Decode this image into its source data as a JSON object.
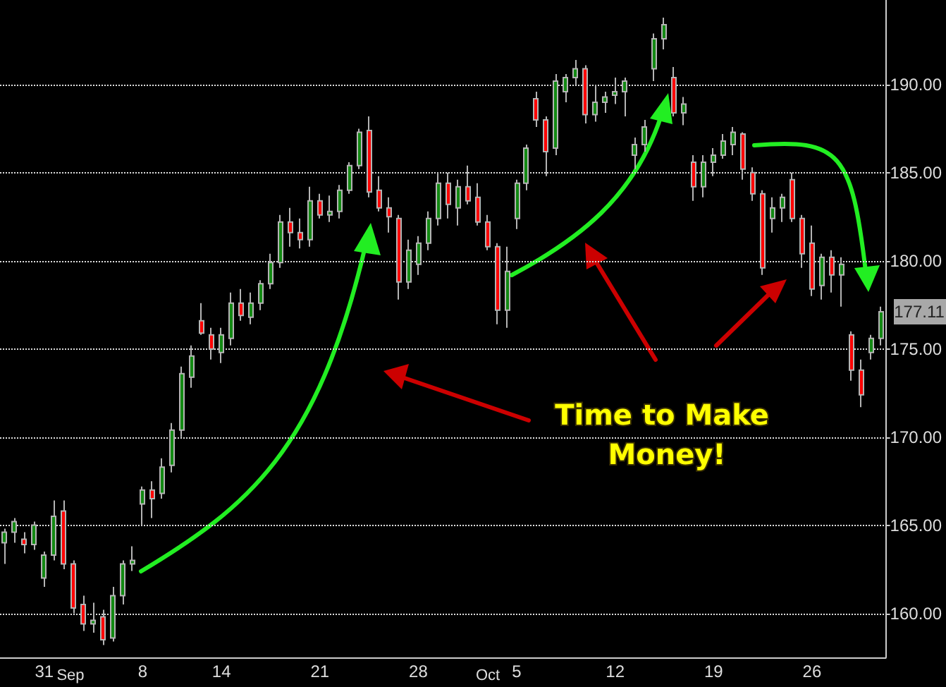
{
  "chart_data": {
    "type": "candlestick",
    "categories": [
      null,
      null,
      null,
      null,
      "31",
      null,
      null,
      null,
      null,
      null,
      null,
      null,
      null,
      null,
      "8",
      null,
      null,
      null,
      null,
      null,
      null,
      null,
      "14",
      null,
      null,
      null,
      null,
      null,
      null,
      null,
      null,
      null,
      "21",
      null,
      null,
      null,
      null,
      null,
      null,
      null,
      null,
      null,
      "28",
      null,
      null,
      null,
      null,
      null,
      null,
      null,
      null,
      null,
      "5",
      null,
      null,
      null,
      null,
      null,
      null,
      null,
      null,
      null,
      "12",
      null,
      null,
      null,
      null,
      null,
      null,
      null,
      null,
      null,
      "19",
      null,
      null,
      null,
      null,
      null,
      null,
      null,
      null,
      null,
      "26",
      null,
      null,
      null,
      null,
      null,
      null,
      null
    ],
    "ohlc": [
      [
        164,
        164.8,
        162.8,
        164.6
      ],
      [
        164.6,
        165.4,
        164,
        165.2
      ],
      [
        164.2,
        164.6,
        163.4,
        163.9
      ],
      [
        163.9,
        165.2,
        163.6,
        165
      ],
      [
        162,
        163.5,
        161.5,
        163.3
      ],
      [
        163.3,
        166.4,
        163,
        165.5
      ],
      [
        165.8,
        166.4,
        162.5,
        162.8
      ],
      [
        162.8,
        163,
        160,
        160.3
      ],
      [
        160.5,
        161,
        159,
        159.4
      ],
      [
        159.4,
        160.6,
        158.9,
        159.6
      ],
      [
        159.8,
        160.2,
        158.2,
        158.5
      ],
      [
        158.6,
        161.5,
        158.4,
        161
      ],
      [
        161,
        163,
        160.5,
        162.8
      ],
      [
        162.8,
        163.8,
        162.4,
        163
      ],
      [
        166.2,
        167.2,
        165,
        167
      ],
      [
        167,
        167.5,
        165.4,
        166.5
      ],
      [
        166.8,
        168.8,
        166.5,
        168.3
      ],
      [
        168.4,
        170.8,
        168,
        170.4
      ],
      [
        170.4,
        174,
        170,
        173.6
      ],
      [
        173.4,
        175.2,
        172.8,
        174.6
      ],
      [
        176.6,
        177.6,
        175.8,
        175.9
      ],
      [
        175.8,
        176.2,
        174.4,
        175
      ],
      [
        174.8,
        176.2,
        174.2,
        175.8
      ],
      [
        175.6,
        178.2,
        175.2,
        177.6
      ],
      [
        177.6,
        178.4,
        176.6,
        176.9
      ],
      [
        176.8,
        178.2,
        176.4,
        177.6
      ],
      [
        177.6,
        178.9,
        177.2,
        178.7
      ],
      [
        178.7,
        180.4,
        178.4,
        179.9
      ],
      [
        179.9,
        182.6,
        179.6,
        182.2
      ],
      [
        182.2,
        183,
        180.8,
        181.6
      ],
      [
        181.6,
        182.4,
        180.7,
        181.2
      ],
      [
        181.2,
        184.2,
        180.8,
        183.4
      ],
      [
        183.4,
        183.8,
        182.4,
        182.6
      ],
      [
        182.6,
        183.7,
        182.2,
        182.8
      ],
      [
        182.8,
        184.3,
        182.4,
        184
      ],
      [
        184,
        185.6,
        183.8,
        185.4
      ],
      [
        185.4,
        187.5,
        185.2,
        187.3
      ],
      [
        187.4,
        188.2,
        183.6,
        183.9
      ],
      [
        184,
        184.8,
        182.8,
        183
      ],
      [
        183,
        183.6,
        181.6,
        182.5
      ],
      [
        182.4,
        182.6,
        177.8,
        178.8
      ],
      [
        178.8,
        181.2,
        178.4,
        180.6
      ],
      [
        179.8,
        181.4,
        179.2,
        181
      ],
      [
        181,
        182.8,
        180.6,
        182.4
      ],
      [
        182.4,
        185,
        182,
        184.4
      ],
      [
        184.4,
        185,
        182.4,
        183.2
      ],
      [
        183,
        184.6,
        182,
        184.2
      ],
      [
        184.2,
        185.4,
        183.2,
        183.4
      ],
      [
        183.6,
        184.4,
        182,
        182.2
      ],
      [
        182.2,
        182.6,
        180.6,
        180.8
      ],
      [
        180.8,
        181,
        176.4,
        177.2
      ],
      [
        177.2,
        180.8,
        176.2,
        179.4
      ],
      [
        182.4,
        184.6,
        181.8,
        184.4
      ],
      [
        184.4,
        186.6,
        184,
        186.4
      ],
      [
        189.2,
        189.6,
        187.6,
        188
      ],
      [
        188,
        188.2,
        184.8,
        186.2
      ],
      [
        186.4,
        190.6,
        186,
        190.2
      ],
      [
        189.6,
        190.6,
        189,
        190.4
      ],
      [
        190.4,
        191.4,
        190,
        190.9
      ],
      [
        190.9,
        191.1,
        187.8,
        188.3
      ],
      [
        188.3,
        190,
        187.9,
        189
      ],
      [
        189,
        189.6,
        188.4,
        189.3
      ],
      [
        189.4,
        190.4,
        188.9,
        189.6
      ],
      [
        189.6,
        190.4,
        188.2,
        190.2
      ],
      [
        186,
        187,
        185.2,
        186.6
      ],
      [
        186.6,
        188,
        186.2,
        187.6
      ],
      [
        190.9,
        192.9,
        190.2,
        192.6
      ],
      [
        192.6,
        193.8,
        192,
        193.4
      ],
      [
        190.4,
        191,
        188.2,
        188.4
      ],
      [
        188.4,
        189.3,
        187.7,
        188.9
      ],
      [
        185.6,
        186,
        183.4,
        184.2
      ],
      [
        184.2,
        186,
        183.6,
        185.6
      ],
      [
        185.6,
        186.4,
        184.8,
        186
      ],
      [
        186,
        187.2,
        185.8,
        186.8
      ],
      [
        186.6,
        187.6,
        186,
        187.3
      ],
      [
        187.2,
        187.3,
        184.6,
        185.2
      ],
      [
        185,
        185.3,
        183.4,
        183.8
      ],
      [
        183.8,
        184,
        179.2,
        179.6
      ],
      [
        182.4,
        183.6,
        181.6,
        183
      ],
      [
        183,
        183.8,
        182.2,
        183.6
      ],
      [
        184.6,
        185,
        182.2,
        182.4
      ],
      [
        182.4,
        182.6,
        179.6,
        180.4
      ],
      [
        181,
        182,
        178,
        178.4
      ],
      [
        178.6,
        180.4,
        177.8,
        180.2
      ],
      [
        180.2,
        180.6,
        178.2,
        179.2
      ],
      [
        179.2,
        180.2,
        177.4,
        179.8
      ],
      [
        175.8,
        176,
        173.2,
        173.8
      ],
      [
        173.8,
        174.4,
        171.7,
        172.4
      ],
      [
        174.8,
        175.8,
        174.4,
        175.6
      ],
      [
        175.6,
        177.4,
        175.2,
        177.11
      ]
    ],
    "colors": [
      "#138a13",
      "#138a13",
      "#ff0000",
      "#138a13",
      "#138a13",
      "#138a13",
      "#ff0000",
      "#ff0000",
      "#ff0000",
      "#138a13",
      "#ff0000",
      "#138a13",
      "#138a13",
      "#138a13",
      "#138a13",
      "#ff0000",
      "#138a13",
      "#138a13",
      "#138a13",
      "#138a13",
      "#ff0000",
      "#ff0000",
      "#138a13",
      "#138a13",
      "#ff0000",
      "#138a13",
      "#138a13",
      "#138a13",
      "#138a13",
      "#ff0000",
      "#ff0000",
      "#138a13",
      "#ff0000",
      "#138a13",
      "#138a13",
      "#138a13",
      "#138a13",
      "#ff0000",
      "#ff0000",
      "#ff0000",
      "#ff0000",
      "#138a13",
      "#138a13",
      "#138a13",
      "#138a13",
      "#ff0000",
      "#138a13",
      "#ff0000",
      "#ff0000",
      "#ff0000",
      "#ff0000",
      "#138a13",
      "#138a13",
      "#138a13",
      "#ff0000",
      "#ff0000",
      "#138a13",
      "#138a13",
      "#138a13",
      "#ff0000",
      "#138a13",
      "#138a13",
      "#138a13",
      "#138a13",
      "#138a13",
      "#138a13",
      "#138a13",
      "#138a13",
      "#ff0000",
      "#138a13",
      "#ff0000",
      "#138a13",
      "#138a13",
      "#138a13",
      "#138a13",
      "#ff0000",
      "#ff0000",
      "#ff0000",
      "#138a13",
      "#138a13",
      "#ff0000",
      "#ff0000",
      "#ff0000",
      "#138a13",
      "#ff0000",
      "#138a13",
      "#ff0000",
      "#ff0000",
      "#138a13",
      "#138a13"
    ],
    "ylim": [
      157.5,
      194.8
    ],
    "yticks": [
      {
        "value": 160,
        "label": "160.00"
      },
      {
        "value": 165,
        "label": "165.00"
      },
      {
        "value": 170,
        "label": "170.00"
      },
      {
        "value": 175,
        "label": "175.00"
      },
      {
        "value": 180,
        "label": "180.00"
      },
      {
        "value": 185,
        "label": "185.00"
      },
      {
        "value": 190,
        "label": "190.00"
      }
    ],
    "grid": "y",
    "annotations": [
      "177.11",
      "Time to Make Money!",
      "Sep",
      "Oct"
    ]
  }
}
